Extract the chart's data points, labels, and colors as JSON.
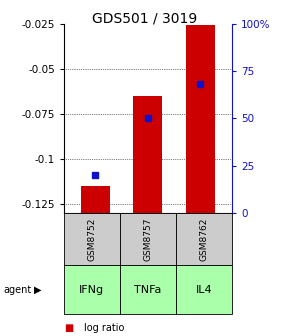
{
  "title": "GDS501 / 3019",
  "samples": [
    "GSM8752",
    "GSM8757",
    "GSM8762"
  ],
  "agents": [
    "IFNg",
    "TNFa",
    "IL4"
  ],
  "log_ratios": [
    -0.115,
    -0.065,
    -0.026
  ],
  "percentile_ranks": [
    20,
    50,
    68
  ],
  "ylim": [
    -0.13,
    -0.025
  ],
  "yticks": [
    -0.125,
    -0.1,
    -0.075,
    -0.05,
    -0.025
  ],
  "right_yticks": [
    0,
    25,
    50,
    75,
    100
  ],
  "bar_color": "#cc0000",
  "dot_color": "#1111cc",
  "agent_color": "#aaffaa",
  "sample_bg": "#cccccc",
  "left_axis_color": "#cc0000",
  "right_axis_color": "#1111cc",
  "bar_width": 0.55,
  "figsize": [
    2.9,
    3.36
  ],
  "dpi": 100
}
